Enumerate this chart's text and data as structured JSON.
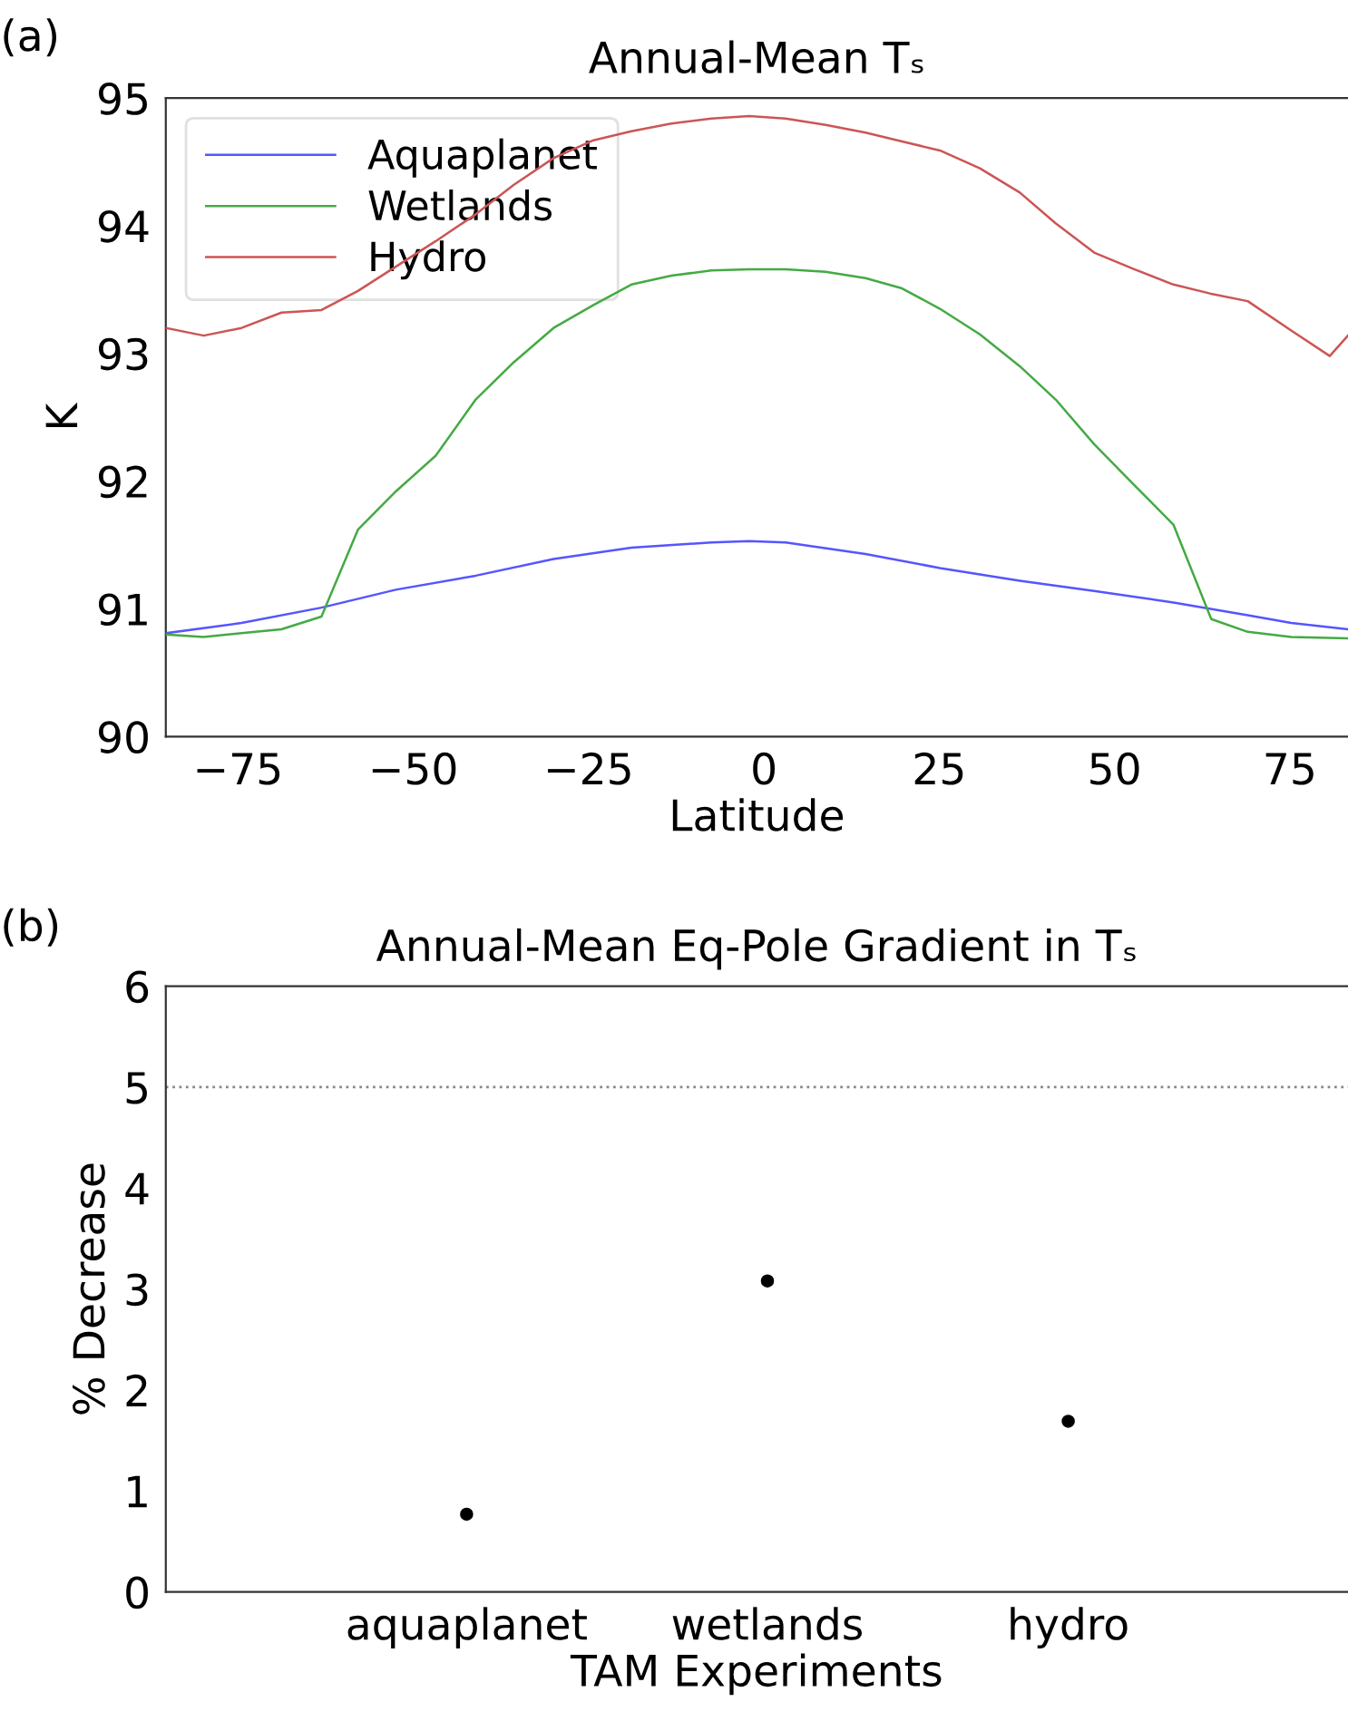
{
  "chart_data": [
    {
      "type": "line",
      "title": "Annual-Mean Tₛ",
      "xlabel": "Latitude",
      "ylabel": "K",
      "annotations": [
        "(a)"
      ],
      "xlim": [
        -85.3,
        83.3
      ],
      "ylim": [
        90,
        95
      ],
      "xticks": [
        {
          "value": -75,
          "label": "−75"
        },
        {
          "value": -50,
          "label": "−50"
        },
        {
          "value": -25,
          "label": "−25"
        },
        0,
        25,
        50,
        75
      ],
      "yticks": [
        90,
        91,
        92,
        93,
        94,
        95
      ],
      "grid": false,
      "legend": "top left",
      "line_style": "solid",
      "marker": "none",
      "series": [
        {
          "name": "Aquaplanet",
          "color": "#5555ff",
          "x": [
            -85.3,
            -74.5,
            -63.1,
            -52.5,
            -41.1,
            -30.0,
            -18.9,
            -7.5,
            -2.1,
            3.1,
            14.5,
            25.1,
            36.5,
            47.1,
            58.4,
            69.0,
            75.2,
            83.3
          ],
          "values": [
            90.81,
            90.89,
            91.01,
            91.15,
            91.26,
            91.39,
            91.48,
            91.52,
            91.53,
            91.52,
            91.43,
            91.32,
            91.22,
            91.14,
            91.05,
            90.95,
            90.89,
            90.84
          ]
        },
        {
          "name": "Wetlands",
          "color": "#44aa44",
          "x": [
            -85.3,
            -79.9,
            -74.5,
            -68.8,
            -63.1,
            -57.9,
            -52.5,
            -46.8,
            -41.1,
            -35.7,
            -30.0,
            -24.3,
            -18.9,
            -13.2,
            -7.5,
            -2.1,
            3.1,
            8.8,
            14.5,
            19.7,
            25.1,
            30.8,
            36.5,
            41.6,
            47.1,
            52.8,
            58.4,
            63.8,
            69.0,
            75.2,
            83.3
          ],
          "values": [
            90.8,
            90.78,
            90.81,
            90.84,
            90.94,
            91.62,
            91.92,
            92.2,
            92.64,
            92.93,
            93.2,
            93.38,
            93.54,
            93.61,
            93.65,
            93.66,
            93.66,
            93.64,
            93.59,
            93.51,
            93.35,
            93.15,
            92.9,
            92.64,
            92.29,
            91.97,
            91.66,
            90.92,
            90.82,
            90.78,
            90.77
          ]
        },
        {
          "name": "Hydro",
          "color": "#cc5555",
          "x": [
            -85.3,
            -79.9,
            -74.5,
            -68.8,
            -63.1,
            -57.9,
            -52.5,
            -46.8,
            -41.1,
            -35.7,
            -30.0,
            -24.3,
            -18.9,
            -13.2,
            -7.5,
            -2.1,
            3.1,
            8.8,
            14.5,
            19.7,
            25.1,
            30.8,
            36.5,
            41.6,
            47.1,
            52.8,
            58.4,
            63.6,
            69.0,
            75.2,
            80.7,
            83.3
          ],
          "values": [
            93.2,
            93.14,
            93.2,
            93.32,
            93.34,
            93.49,
            93.68,
            93.88,
            94.09,
            94.32,
            94.53,
            94.67,
            94.74,
            94.8,
            94.84,
            94.86,
            94.84,
            94.79,
            94.73,
            94.66,
            94.59,
            94.45,
            94.26,
            94.02,
            93.79,
            93.66,
            93.54,
            93.47,
            93.41,
            93.18,
            92.98,
            93.14
          ]
        }
      ]
    },
    {
      "type": "scatter",
      "title": "Annual-Mean Eq-Pole Gradient in Tₛ",
      "xlabel": "TAM Experiments",
      "ylabel": "% Decrease",
      "annotations": [
        "(b)"
      ],
      "categories": [
        "aquaplanet",
        "wetlands",
        "hydro"
      ],
      "ylim": [
        0,
        6
      ],
      "yticks": [
        0,
        1,
        2,
        3,
        4,
        5,
        6
      ],
      "grid": false,
      "legend": false,
      "marker": "circle",
      "series": [
        {
          "color": "#000000",
          "values": [
            0.77,
            3.08,
            1.69
          ]
        }
      ],
      "ref_lines": [
        {
          "axis": "y",
          "value": 5,
          "color": "#888888",
          "line_style": "dotted"
        }
      ]
    }
  ]
}
